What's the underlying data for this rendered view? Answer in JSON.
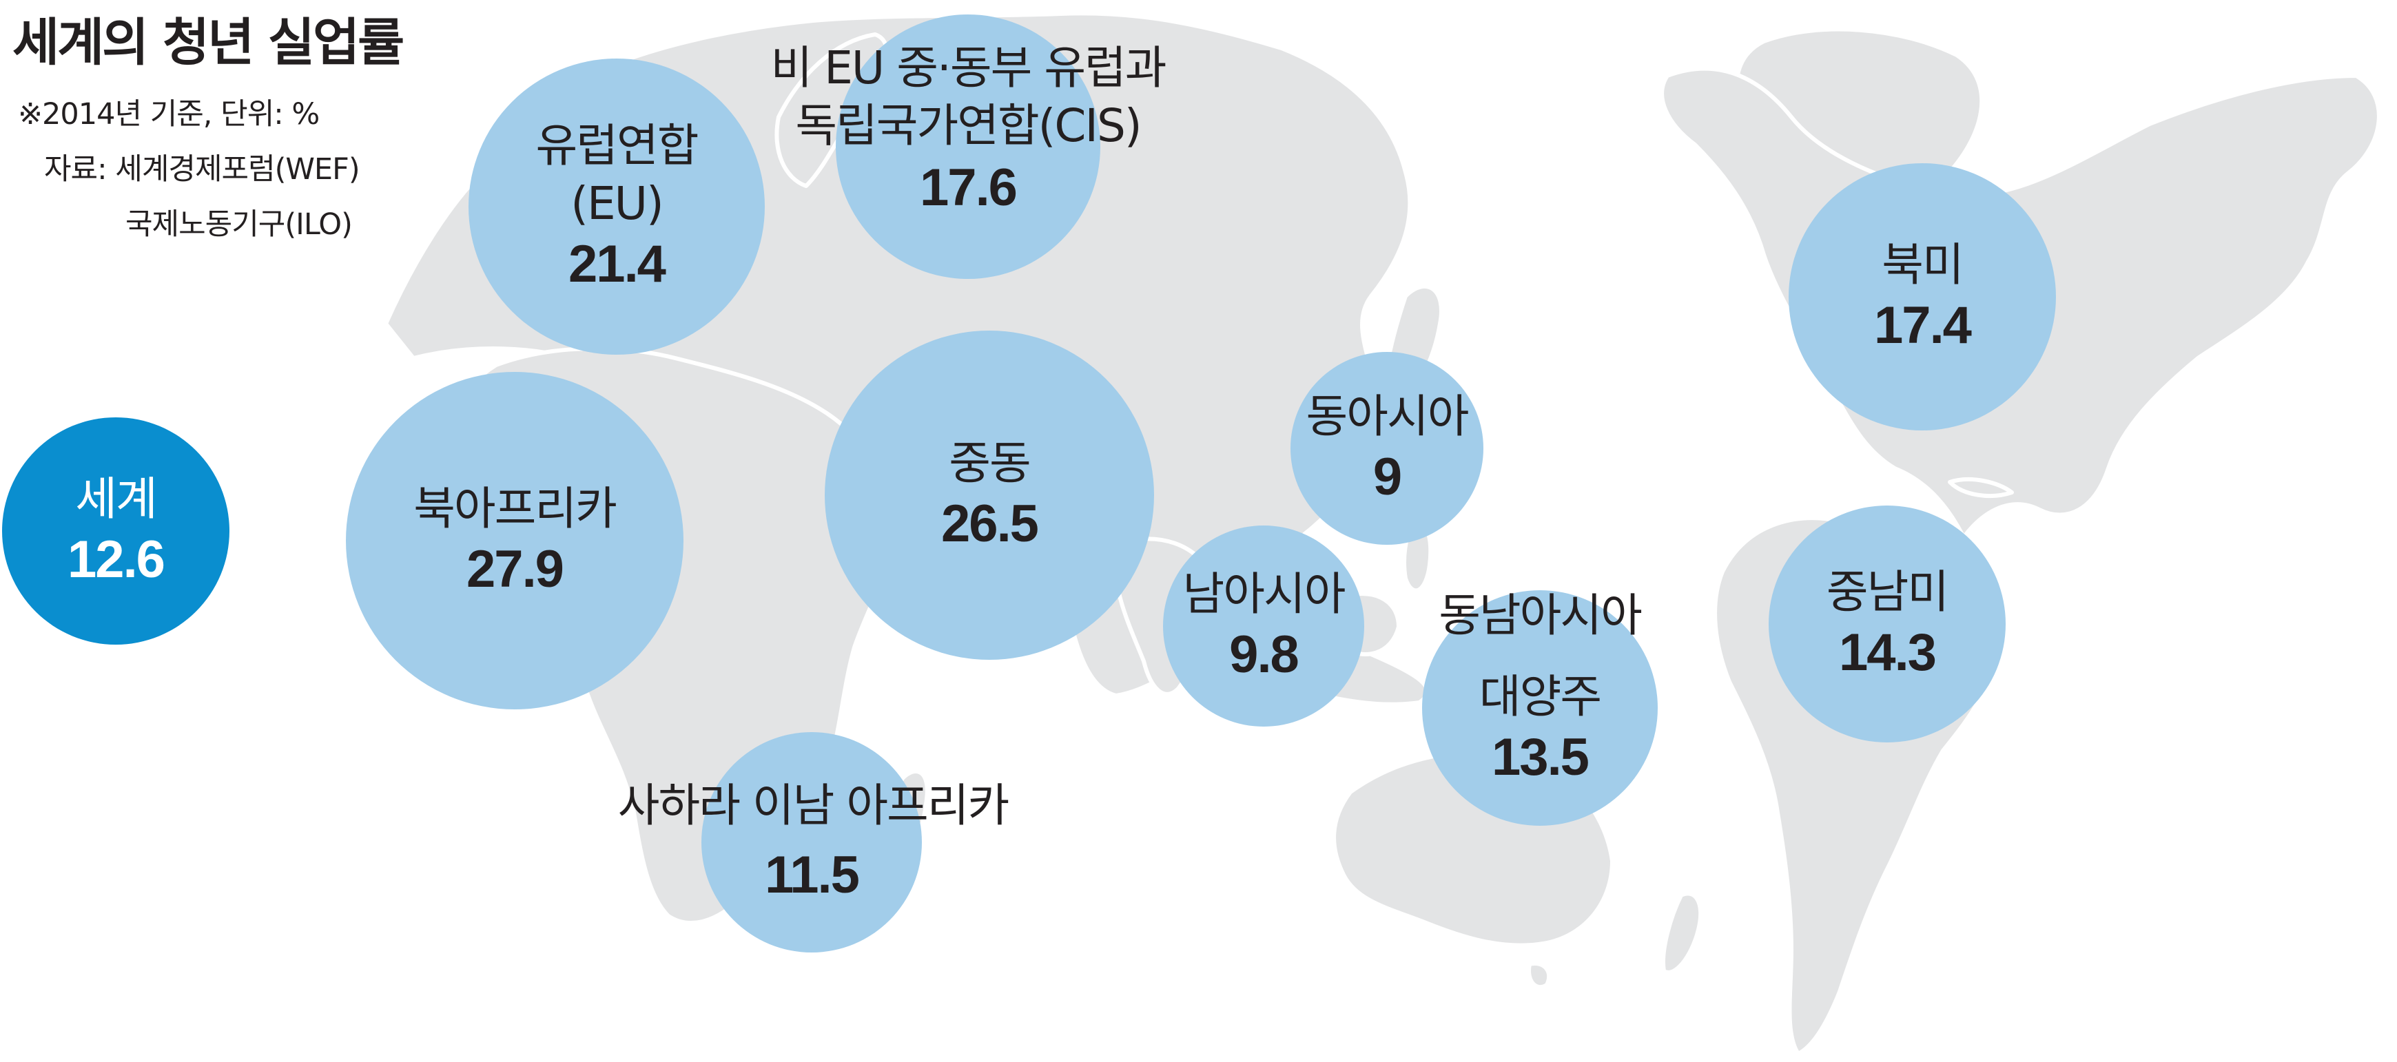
{
  "header": {
    "title": "세계의 청년 실업률",
    "note_basis": "※2014년 기준, 단위: %",
    "note_source_1": "자료: 세계경제포럼(WEF)",
    "note_source_2": "국제노동기구(ILO)"
  },
  "colors": {
    "region_bubble": "#a2cdea",
    "world_bubble": "#0a8ecf",
    "land": "#e3e4e5",
    "text": "#231f20"
  },
  "regions": {
    "world": {
      "name": "세계",
      "value": "12.6"
    },
    "eu": {
      "name_1": "유럽연합",
      "name_2": "(EU)",
      "value": "21.4"
    },
    "cis": {
      "name_1": "비 EU 중·동부 유럽과",
      "name_2": "독립국가연합(CIS)",
      "value": "17.6"
    },
    "north_america": {
      "name": "북미",
      "value": "17.4"
    },
    "north_africa": {
      "name": "북아프리카",
      "value": "27.9"
    },
    "middle_east": {
      "name": "중동",
      "value": "26.5"
    },
    "east_asia": {
      "name": "동아시아",
      "value": "9"
    },
    "south_asia": {
      "name": "남아시아",
      "value": "9.8"
    },
    "southeast_asia_pacific": {
      "name_1": "동남아시아",
      "name_2": "대양주",
      "value": "13.5"
    },
    "latin_america": {
      "name": "중남미",
      "value": "14.3"
    },
    "sub_saharan_africa": {
      "name": "사하라 이남 아프리카",
      "value": "11.5"
    }
  }
}
